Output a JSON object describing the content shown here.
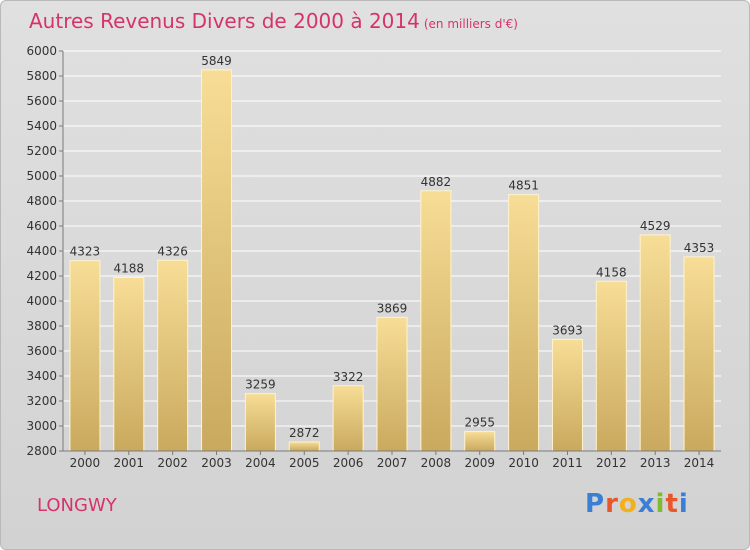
{
  "header": {
    "title": "Autres Revenus Divers de 2000 à 2014",
    "unit": "(en milliers d'€)"
  },
  "footer": {
    "city": "LONGWY"
  },
  "logo": {
    "letters": [
      "P",
      "r",
      "o",
      "x",
      "i",
      "t",
      "i"
    ],
    "colors": [
      "#3a7fd5",
      "#e8572a",
      "#f2b01e",
      "#3a7fd5",
      "#7dbb2f",
      "#e8572a",
      "#3a7fd5"
    ]
  },
  "chart_data": {
    "type": "bar",
    "title": "Autres Revenus Divers de 2000 à 2014",
    "subtitle": "(en milliers d'€)",
    "categories": [
      "2000",
      "2001",
      "2002",
      "2003",
      "2004",
      "2005",
      "2006",
      "2007",
      "2008",
      "2009",
      "2010",
      "2011",
      "2012",
      "2013",
      "2014"
    ],
    "values": [
      4323,
      4188,
      4326,
      5849,
      3259,
      2872,
      3322,
      3869,
      4882,
      2955,
      4851,
      3693,
      4158,
      4529,
      4353
    ],
    "ylim": [
      2800,
      6000
    ],
    "yticks": [
      2800,
      3000,
      3200,
      3400,
      3600,
      3800,
      4000,
      4200,
      4400,
      4600,
      4800,
      5000,
      5200,
      5400,
      5600,
      5800,
      6000
    ],
    "grid": true,
    "colors": {
      "bar_light": "#f7dd96",
      "bar_dark": "#c9a95e",
      "axis": "#7a7a7a",
      "grid": "#ffffff",
      "text": "#333333"
    }
  }
}
